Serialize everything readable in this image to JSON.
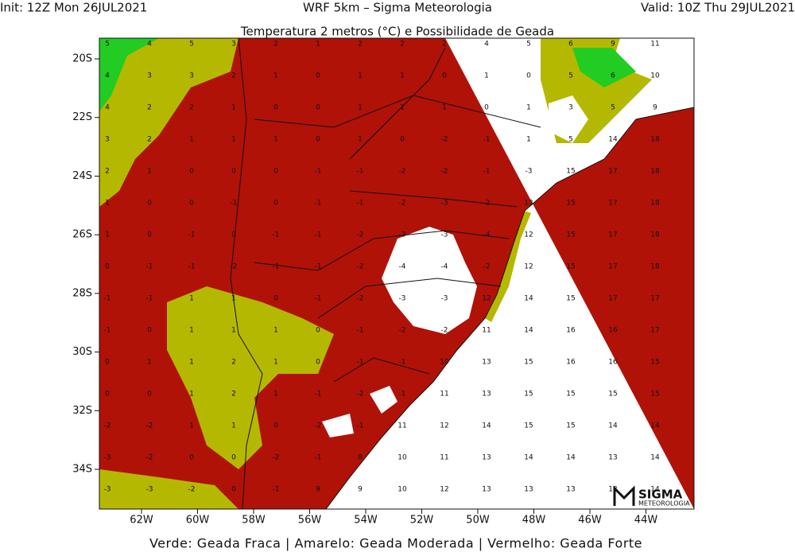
{
  "header": {
    "init": "Init: 12Z Mon 26JUL2021",
    "model": "WRF 5km – Sigma Meteorologia",
    "valid": "Valid: 10Z Thu 29JUL2021"
  },
  "map": {
    "title": "Temperatura 2 metros (°C) e Possibilidade de Geada",
    "lon_ticks": [
      {
        "value": -62,
        "label": "62W"
      },
      {
        "value": -60,
        "label": "60W"
      },
      {
        "value": -58,
        "label": "58W"
      },
      {
        "value": -56,
        "label": "56W"
      },
      {
        "value": -54,
        "label": "54W"
      },
      {
        "value": -52,
        "label": "52W"
      },
      {
        "value": -50,
        "label": "50W"
      },
      {
        "value": -48,
        "label": "48W"
      },
      {
        "value": -46,
        "label": "46W"
      },
      {
        "value": -44,
        "label": "44W"
      }
    ],
    "lat_ticks": [
      {
        "value": -20,
        "label": "20S"
      },
      {
        "value": -22,
        "label": "22S"
      },
      {
        "value": -24,
        "label": "24S"
      },
      {
        "value": -26,
        "label": "26S"
      },
      {
        "value": -28,
        "label": "28S"
      },
      {
        "value": -30,
        "label": "30S"
      },
      {
        "value": -32,
        "label": "32S"
      },
      {
        "value": -34,
        "label": "34S"
      }
    ],
    "temperature_grid": [
      [
        5,
        4,
        5,
        3,
        2,
        1,
        2,
        2,
        2,
        4,
        5,
        6,
        9,
        11
      ],
      [
        4,
        3,
        3,
        2,
        1,
        0,
        1,
        1,
        0,
        1,
        0,
        5,
        6,
        10
      ],
      [
        4,
        2,
        2,
        1,
        0,
        0,
        1,
        1,
        1,
        0,
        1,
        3,
        5,
        9
      ],
      [
        3,
        2,
        1,
        1,
        1,
        0,
        1,
        0,
        -2,
        -1,
        1,
        5,
        14,
        18
      ],
      [
        2,
        1,
        0,
        0,
        0,
        -1,
        -1,
        -2,
        -2,
        -1,
        -3,
        15,
        17,
        18
      ],
      [
        1,
        0,
        0,
        -1,
        0,
        -1,
        -1,
        -2,
        -3,
        -2,
        13,
        15,
        17,
        18
      ],
      [
        1,
        0,
        -1,
        0,
        -1,
        -1,
        -2,
        -3,
        -3,
        -4,
        12,
        15,
        17,
        18
      ],
      [
        0,
        -1,
        -1,
        -2,
        -1,
        -1,
        -2,
        -4,
        -4,
        -2,
        12,
        15,
        17,
        18
      ],
      [
        -1,
        -1,
        1,
        1,
        0,
        -1,
        -2,
        -3,
        -3,
        12,
        14,
        15,
        17,
        17
      ],
      [
        -1,
        0,
        1,
        1,
        1,
        0,
        -1,
        -2,
        -2,
        11,
        14,
        16,
        16,
        17
      ],
      [
        0,
        1,
        1,
        2,
        1,
        0,
        -1,
        -1,
        10,
        13,
        15,
        16,
        16,
        15
      ],
      [
        0,
        0,
        1,
        2,
        1,
        -1,
        -2,
        -1,
        11,
        13,
        15,
        15,
        15,
        15
      ],
      [
        -2,
        -2,
        1,
        1,
        0,
        -2,
        -1,
        11,
        12,
        14,
        15,
        15,
        14,
        14
      ],
      [
        -3,
        -2,
        0,
        0,
        -2,
        -1,
        8,
        10,
        11,
        13,
        14,
        14,
        13,
        14
      ],
      [
        -3,
        -3,
        -2,
        0,
        -1,
        9,
        9,
        10,
        12,
        13,
        13,
        13,
        13,
        14
      ]
    ]
  },
  "logo": {
    "name": "SIGMA",
    "sub": "METEOROLOGIA"
  },
  "legend": "Verde: Geada Fraca | Amarelo: Geada Moderada | Vermelho: Geada Forte"
}
